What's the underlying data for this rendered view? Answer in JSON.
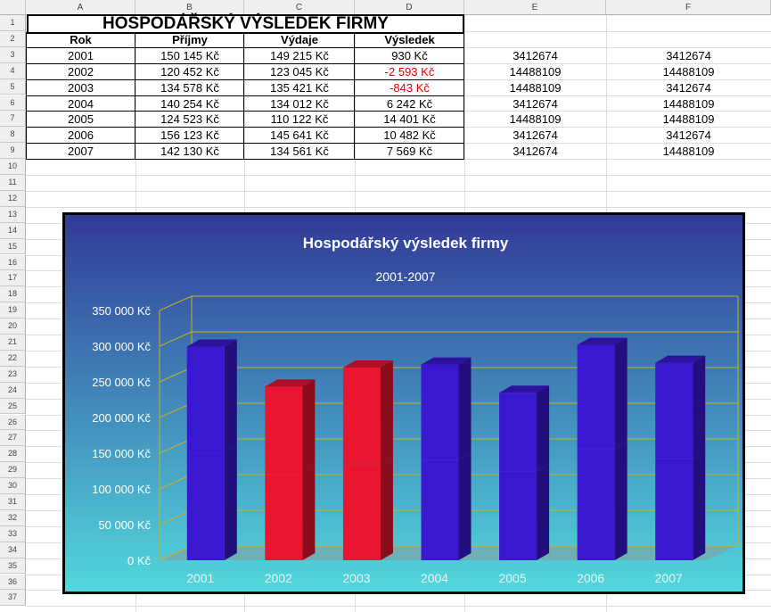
{
  "sheet": {
    "columns": [
      "A",
      "B",
      "C",
      "D",
      "E",
      "F"
    ],
    "rows": [
      "1",
      "2",
      "3",
      "4",
      "5",
      "6",
      "7",
      "8",
      "9",
      "10",
      "11",
      "12",
      "13",
      "14",
      "15",
      "16",
      "17",
      "18",
      "19",
      "20",
      "21",
      "22",
      "23",
      "24",
      "25",
      "26",
      "27",
      "28",
      "29",
      "30",
      "31",
      "32",
      "33",
      "34",
      "35",
      "36",
      "37"
    ],
    "title": "HOSPODÁŘSKÝ VÝSLEDEK FIRMY",
    "headers": [
      "Rok",
      "Příjmy",
      "Výdaje",
      "Výsledek"
    ],
    "table": [
      {
        "rok": "2001",
        "prijmy": "150 145 Kč",
        "vydaje": "149 215 Kč",
        "vysledek": "930 Kč",
        "negative": false,
        "e": "3412674",
        "f": "3412674"
      },
      {
        "rok": "2002",
        "prijmy": "120 452 Kč",
        "vydaje": "123 045 Kč",
        "vysledek": "-2 593 Kč",
        "negative": true,
        "e": "14488109",
        "f": "14488109"
      },
      {
        "rok": "2003",
        "prijmy": "134 578 Kč",
        "vydaje": "135 421 Kč",
        "vysledek": "-843 Kč",
        "negative": true,
        "e": "14488109",
        "f": "3412674"
      },
      {
        "rok": "2004",
        "prijmy": "140 254 Kč",
        "vydaje": "134 012 Kč",
        "vysledek": "6 242 Kč",
        "negative": false,
        "e": "3412674",
        "f": "14488109"
      },
      {
        "rok": "2005",
        "prijmy": "124 523 Kč",
        "vydaje": "110 122 Kč",
        "vysledek": "14 401 Kč",
        "negative": false,
        "e": "14488109",
        "f": "14488109"
      },
      {
        "rok": "2006",
        "prijmy": "156 123 Kč",
        "vydaje": "145 641 Kč",
        "vysledek": "10 482 Kč",
        "negative": false,
        "e": "3412674",
        "f": "3412674"
      },
      {
        "rok": "2007",
        "prijmy": "142 130 Kč",
        "vydaje": "134 561 Kč",
        "vysledek": "7 569 Kč",
        "negative": false,
        "e": "3412674",
        "f": "14488109"
      }
    ]
  },
  "colors": {
    "positive": "#3a18d0",
    "negative": "#e81430",
    "negative_text": "#e00000",
    "chart_bg_top": "#323a98",
    "chart_bg_bottom": "#52d8dc",
    "gridline": "#c8b020"
  },
  "chart_data": {
    "type": "bar",
    "stacked": true,
    "three_d": true,
    "title": "Hospodářský výsledek firmy",
    "subtitle": "2001-2007",
    "categories": [
      "2001",
      "2002",
      "2003",
      "2004",
      "2005",
      "2006",
      "2007"
    ],
    "series": [
      {
        "values": [
          150145,
          120452,
          134578,
          140254,
          124523,
          156123,
          142130
        ]
      },
      {
        "values": [
          149215,
          123045,
          135421,
          134012,
          110122,
          145641,
          134561
        ]
      }
    ],
    "bar_color": [
      "positive",
      "negative",
      "negative",
      "positive",
      "positive",
      "positive",
      "positive"
    ],
    "ylim": [
      0,
      350000
    ],
    "yticks": [
      0,
      50000,
      100000,
      150000,
      200000,
      250000,
      300000,
      350000
    ],
    "ytick_labels": [
      "0 Kč",
      "50 000 Kč",
      "100 000 Kč",
      "150 000 Kč",
      "200 000 Kč",
      "250 000 Kč",
      "300 000 Kč",
      "350 000 Kč"
    ],
    "grid": true,
    "legend": "none"
  }
}
